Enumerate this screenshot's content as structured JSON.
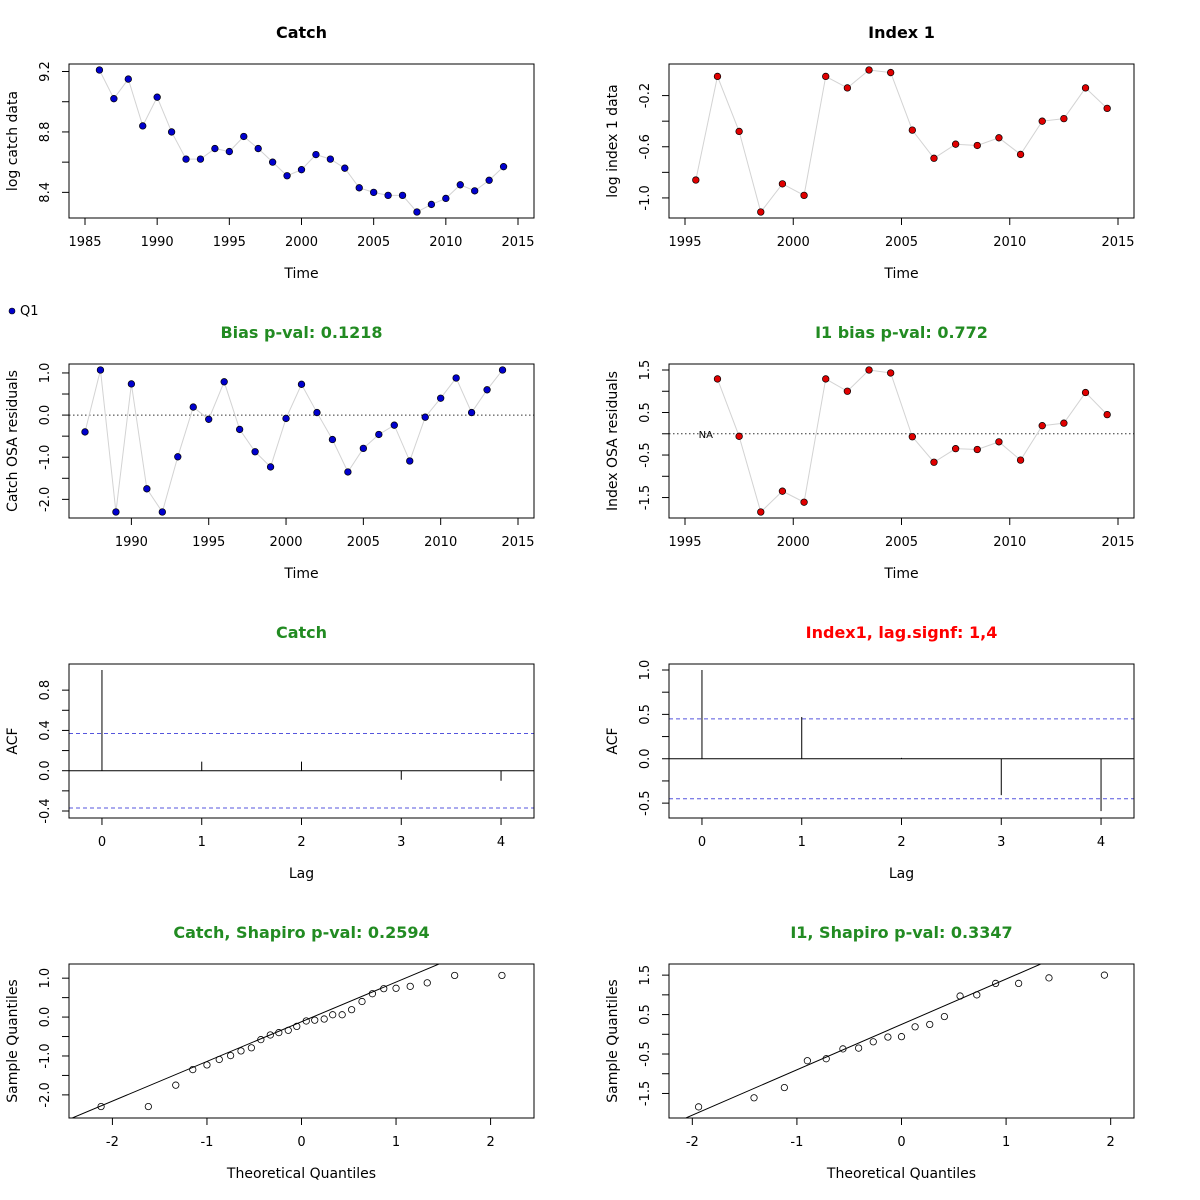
{
  "colors": {
    "green": "#228b22",
    "red": "#ff0000",
    "blue_point": "#0000cd",
    "red_point": "#e00000",
    "conf_line": "#5555dd",
    "connector": "#d3d3d3"
  },
  "chart_data": [
    {
      "type": "scatter",
      "panel": "catch-data",
      "title": "Catch",
      "title_color": "black",
      "xlabel": "Time",
      "ylabel": "log catch data",
      "xlim": [
        1985,
        2015
      ],
      "ylim": [
        8.27,
        9.21
      ],
      "xticks": [
        "1985",
        "1990",
        "1995",
        "2000",
        "2005",
        "2010",
        "2015"
      ],
      "yticks": [
        "8.4",
        "8.8",
        "9.2"
      ],
      "point_fill": "#0000cd",
      "connect": true,
      "legend": [
        {
          "label": "Q1",
          "color": "#0000cd"
        }
      ],
      "x": [
        1986,
        1987,
        1988,
        1989,
        1990,
        1991,
        1992,
        1993,
        1994,
        1995,
        1996,
        1997,
        1998,
        1999,
        2000,
        2001,
        2002,
        2003,
        2004,
        2005,
        2006,
        2007,
        2008,
        2009,
        2010,
        2011,
        2012,
        2013,
        2014
      ],
      "y": [
        9.21,
        9.02,
        9.15,
        8.84,
        9.03,
        8.8,
        8.62,
        8.62,
        8.69,
        8.67,
        8.77,
        8.69,
        8.6,
        8.51,
        8.55,
        8.65,
        8.62,
        8.56,
        8.43,
        8.4,
        8.38,
        8.38,
        8.27,
        8.32,
        8.36,
        8.45,
        8.41,
        8.48,
        8.57
      ]
    },
    {
      "type": "scatter",
      "panel": "index-data",
      "title": "Index 1",
      "title_color": "black",
      "xlabel": "Time",
      "ylabel": "log index 1 data",
      "xlim": [
        1995,
        2015
      ],
      "ylim": [
        -1.11,
        0.0
      ],
      "xticks": [
        "1995",
        "2000",
        "2005",
        "2010",
        "2015"
      ],
      "yticks": [
        "-1.0",
        "-0.6",
        "-0.2"
      ],
      "point_fill": "#e00000",
      "connect": true,
      "x": [
        1995.5,
        1996.5,
        1997.5,
        1998.5,
        1999.5,
        2000.5,
        2001.5,
        2002.5,
        2003.5,
        2004.5,
        2005.5,
        2006.5,
        2007.5,
        2008.5,
        2009.5,
        2010.5,
        2011.5,
        2012.5,
        2013.5,
        2014.5
      ],
      "y": [
        -0.86,
        -0.05,
        -0.48,
        -1.11,
        -0.89,
        -0.98,
        -0.05,
        -0.14,
        0.0,
        -0.02,
        -0.47,
        -0.69,
        -0.58,
        -0.59,
        -0.53,
        -0.66,
        -0.4,
        -0.38,
        -0.14,
        -0.3
      ]
    },
    {
      "type": "scatter",
      "panel": "catch-resid",
      "title": "Bias p-val: 0.1218",
      "title_color": "green",
      "xlabel": "Time",
      "ylabel": "Catch OSA residuals",
      "xlim": [
        1987,
        2015
      ],
      "ylim": [
        -2.3,
        1.07
      ],
      "xticks": [
        "1990",
        "1995",
        "2000",
        "2005",
        "2010",
        "2015"
      ],
      "yticks": [
        "-2.0",
        "-1.0",
        "0.0",
        "1.0"
      ],
      "hline": 0,
      "point_fill": "#0000cd",
      "connect": true,
      "x": [
        1987,
        1988,
        1989,
        1990,
        1991,
        1992,
        1993,
        1994,
        1995,
        1996,
        1997,
        1998,
        1999,
        2000,
        2001,
        2002,
        2003,
        2004,
        2005,
        2006,
        2007,
        2008,
        2009,
        2010,
        2011,
        2012,
        2013,
        2014
      ],
      "y": [
        -0.4,
        1.07,
        -2.3,
        0.74,
        -1.75,
        -2.3,
        -0.99,
        0.19,
        -0.1,
        0.79,
        -0.34,
        -0.87,
        -1.23,
        -0.08,
        0.73,
        0.06,
        -0.58,
        -1.35,
        -0.79,
        -0.46,
        -0.24,
        -1.09,
        -0.05,
        0.4,
        0.88,
        0.06,
        0.6,
        1.07
      ]
    },
    {
      "type": "scatter",
      "panel": "index-resid",
      "title": "I1 bias p-val: 0.772",
      "title_color": "green",
      "xlabel": "Time",
      "ylabel": "Index OSA residuals",
      "xlim": [
        1995,
        2015
      ],
      "ylim": [
        -1.84,
        1.5
      ],
      "xticks": [
        "1995",
        "2000",
        "2005",
        "2010",
        "2015"
      ],
      "yticks": [
        "-1.5",
        "-0.5",
        "0.5",
        "1.5"
      ],
      "hline": 0,
      "point_fill": "#e00000",
      "connect": true,
      "annotation": {
        "text": "NA",
        "x": 1995.5,
        "y": 0
      },
      "x": [
        1996.5,
        1997.5,
        1998.5,
        1999.5,
        2000.5,
        2001.5,
        2002.5,
        2003.5,
        2004.5,
        2005.5,
        2006.5,
        2007.5,
        2008.5,
        2009.5,
        2010.5,
        2011.5,
        2012.5,
        2013.5,
        2014.5
      ],
      "y": [
        1.29,
        -0.06,
        -1.84,
        -1.35,
        -1.61,
        1.29,
        1.0,
        1.5,
        1.43,
        -0.07,
        -0.67,
        -0.35,
        -0.37,
        -0.19,
        -0.62,
        0.19,
        0.25,
        0.97,
        0.45
      ]
    },
    {
      "type": "bar",
      "panel": "catch-acf",
      "title": "Catch",
      "title_color": "green",
      "xlabel": "Lag",
      "ylabel": "ACF",
      "xlim": [
        -0.17,
        4.17
      ],
      "ylim": [
        -0.41,
        1.0
      ],
      "xticks": [
        "0",
        "1",
        "2",
        "3",
        "4"
      ],
      "yticks": [
        "-0.4",
        "0.0",
        "0.4",
        "0.8"
      ],
      "hline": 0,
      "conf": 0.37,
      "x": [
        0,
        1,
        2,
        3,
        4
      ],
      "values": [
        1.0,
        0.09,
        0.09,
        -0.09,
        -0.1
      ]
    },
    {
      "type": "bar",
      "panel": "index-acf",
      "title": "Index1, lag.signf: 1,4",
      "title_color": "red",
      "xlabel": "Lag",
      "ylabel": "ACF",
      "xlim": [
        -0.17,
        4.17
      ],
      "ylim": [
        -0.6,
        1.0
      ],
      "xticks": [
        "0",
        "1",
        "2",
        "3",
        "4"
      ],
      "yticks": [
        "-0.5",
        "0.0",
        "0.5",
        "1.0"
      ],
      "hline": 0,
      "conf": 0.45,
      "x": [
        0,
        1,
        2,
        3,
        4
      ],
      "values": [
        1.0,
        0.47,
        0.01,
        -0.41,
        -0.59
      ]
    },
    {
      "type": "scatter",
      "panel": "catch-qq",
      "title": "Catch, Shapiro p-val: 0.2594",
      "title_color": "green",
      "xlabel": "Theoretical Quantiles",
      "ylabel": "Sample Quantiles",
      "xlim": [
        -2.29,
        2.29
      ],
      "ylim": [
        -2.44,
        1.21
      ],
      "xticks": [
        "-2",
        "-1",
        "0",
        "1",
        "2"
      ],
      "yticks": [
        "-2.0",
        "-1.0",
        "0.0",
        "1.0"
      ],
      "point_fill": "none",
      "connect": false,
      "qqline": {
        "intercept": -0.12,
        "slope": 1.02
      },
      "x": [
        -2.12,
        -1.62,
        -1.33,
        -1.15,
        -1.0,
        -0.87,
        -0.75,
        -0.64,
        -0.53,
        -0.43,
        -0.33,
        -0.24,
        -0.14,
        -0.05,
        0.05,
        0.14,
        0.24,
        0.33,
        0.43,
        0.53,
        0.64,
        0.75,
        0.87,
        1.0,
        1.15,
        1.33,
        1.62,
        2.12
      ],
      "y": [
        -2.3,
        -2.3,
        -1.75,
        -1.35,
        -1.23,
        -1.09,
        -0.99,
        -0.87,
        -0.79,
        -0.58,
        -0.46,
        -0.4,
        -0.34,
        -0.24,
        -0.1,
        -0.08,
        -0.05,
        0.06,
        0.06,
        0.19,
        0.4,
        0.6,
        0.73,
        0.74,
        0.79,
        0.88,
        1.07,
        1.07
      ]
    },
    {
      "type": "scatter",
      "panel": "index-qq",
      "title": "I1, Shapiro p-val: 0.3347",
      "title_color": "green",
      "xlabel": "Theoretical Quantiles",
      "ylabel": "Sample Quantiles",
      "xlim": [
        -2.07,
        2.07
      ],
      "ylim": [
        -1.97,
        1.63
      ],
      "xticks": [
        "-2",
        "-1",
        "0",
        "1",
        "2"
      ],
      "yticks": [
        "-1.5",
        "-0.5",
        "0.5",
        "1.5"
      ],
      "point_fill": "none",
      "connect": false,
      "qqline": {
        "intercept": 0.25,
        "slope": 1.15
      },
      "x": [
        -1.94,
        -1.41,
        -1.12,
        -0.9,
        -0.72,
        -0.56,
        -0.41,
        -0.27,
        -0.13,
        0.0,
        0.13,
        0.27,
        0.41,
        0.56,
        0.72,
        0.9,
        1.12,
        1.41,
        1.94
      ],
      "y": [
        -1.84,
        -1.61,
        -1.35,
        -0.67,
        -0.62,
        -0.37,
        -0.35,
        -0.19,
        -0.07,
        -0.06,
        0.19,
        0.25,
        0.45,
        0.97,
        1.0,
        1.29,
        1.29,
        1.43,
        1.5
      ]
    }
  ]
}
